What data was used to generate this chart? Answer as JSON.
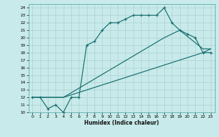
{
  "xlabel": "Humidex (Indice chaleur)",
  "background_color": "#c8eaea",
  "line_color": "#1a7070",
  "grid_color": "#aacfcf",
  "xlim": [
    -0.5,
    23.5
  ],
  "ylim": [
    10,
    24.5
  ],
  "yticks": [
    10,
    11,
    12,
    13,
    14,
    15,
    16,
    17,
    18,
    19,
    20,
    21,
    22,
    23,
    24
  ],
  "xticks": [
    0,
    1,
    2,
    3,
    4,
    5,
    6,
    7,
    8,
    9,
    10,
    11,
    12,
    13,
    14,
    15,
    16,
    17,
    18,
    19,
    20,
    21,
    22,
    23
  ],
  "line1_x": [
    0,
    1,
    2,
    3,
    4,
    5,
    6,
    7,
    8,
    9,
    10,
    11,
    12,
    13,
    14,
    15,
    16,
    17,
    18,
    19,
    20,
    21,
    22,
    23
  ],
  "line1_y": [
    12,
    12,
    10.5,
    11,
    10,
    12,
    12,
    19,
    19.5,
    21,
    22,
    22,
    22.5,
    23,
    23,
    23,
    23,
    24,
    22,
    21,
    20.5,
    20,
    18,
    18
  ],
  "line2_x": [
    0,
    4,
    17,
    19,
    22,
    23
  ],
  "line2_y": [
    12,
    12,
    20,
    21,
    18.5,
    18.5
  ],
  "line3_x": [
    0,
    4,
    22,
    23
  ],
  "line3_y": [
    12,
    12,
    18,
    18.5
  ]
}
